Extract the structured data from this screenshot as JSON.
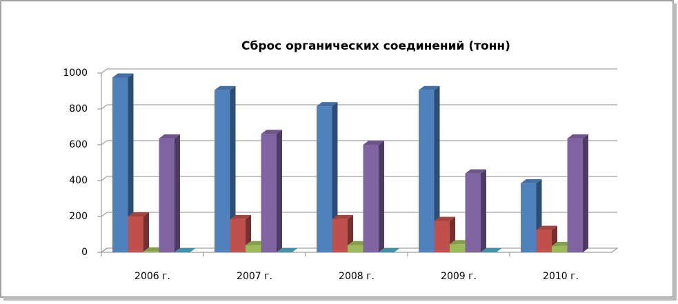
{
  "chart_data": {
    "type": "bar3d",
    "title": "Сброс органических соединений  (тонн)",
    "categories": [
      "2006 г.",
      "2007 г.",
      "2008 г.",
      "2009 г.",
      "2010 г."
    ],
    "series": [
      {
        "color": "#4f81bd",
        "values": [
          975,
          905,
          815,
          905,
          385
        ]
      },
      {
        "color": "#c0504d",
        "values": [
          200,
          185,
          185,
          175,
          125
        ]
      },
      {
        "color": "#9bbb59",
        "values": [
          5,
          40,
          40,
          45,
          35
        ]
      },
      {
        "color": "#8064a2",
        "values": [
          635,
          660,
          600,
          440,
          635
        ]
      },
      {
        "color": "#4bacc6",
        "values": [
          0,
          0,
          0,
          0,
          null
        ]
      }
    ],
    "ylim": [
      0,
      1000
    ],
    "yticks": [
      0,
      200,
      400,
      600,
      800,
      1000
    ],
    "grid": true
  }
}
